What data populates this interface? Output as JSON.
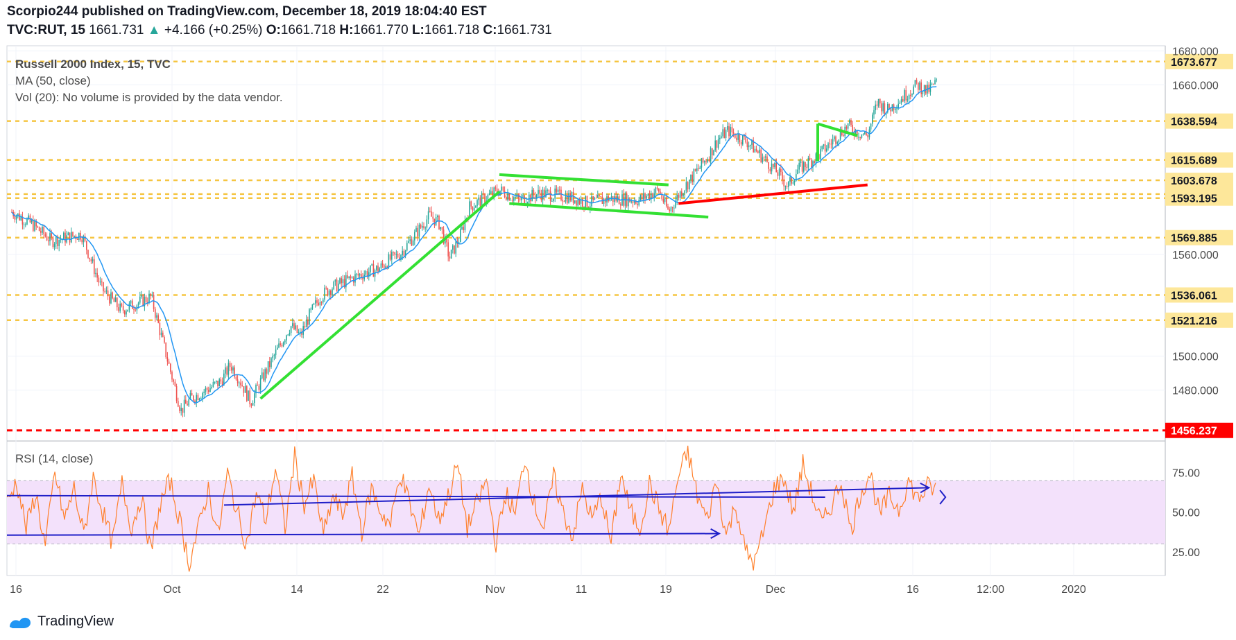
{
  "header": {
    "publisher_line": "Scorpio244 published on TradingView.com, December 18, 2019 18:04:40 EST",
    "symbol": "TVC:RUT, 15",
    "last": "1661.731",
    "change": "+4.166 (+0.25%)",
    "o_label": "O:",
    "o": "1661.718",
    "h_label": "H:",
    "h": "1661.770",
    "l_label": "L:",
    "l": "1661.718",
    "c_label": "C:",
    "c": "1661.731"
  },
  "legend": {
    "title": "Russell 2000 Index, 15, TVC",
    "ma": "MA (50, close)",
    "vol": "Vol (20): No volume is provided by the data vendor.",
    "rsi": "RSI (14, close)"
  },
  "footer": {
    "brand": "TradingView"
  },
  "colors": {
    "candle_up": "#26a69a",
    "candle_down": "#ef5350",
    "ma": "#2196f3",
    "level_line": "#f5c542",
    "level_label_bg": "#fde79a",
    "support_red": "#ff0000",
    "trend_green": "#33e033",
    "rsi_line": "#ff7f2a",
    "rsi_band": "#f3e1fb",
    "rsi_trend": "#1e1ec8"
  },
  "chart_data": [
    {
      "type": "candlestick",
      "title": "Russell 2000 Index, 15, TVC",
      "y_axis": {
        "ticks": [
          1480,
          1500,
          1560,
          1660,
          1680
        ],
        "tick_labels": [
          "1480.000",
          "1500.000",
          "1560.000",
          "1660.000",
          "1680.000"
        ],
        "range": [
          1450,
          1683
        ]
      },
      "x_axis": {
        "ticks": [
          "16",
          "Oct",
          "14",
          "22",
          "Nov",
          "11",
          "19",
          "Dec",
          "16",
          "12:00",
          "2020"
        ]
      },
      "horizontal_levels": [
        {
          "value": 1673.677,
          "label": "1673.677",
          "style": "dashed",
          "color": "#f5c542"
        },
        {
          "value": 1638.594,
          "label": "1638.594",
          "style": "dashed",
          "color": "#f5c542"
        },
        {
          "value": 1615.689,
          "label": "1615.689",
          "style": "dashed",
          "color": "#f5c542"
        },
        {
          "value": 1603.678,
          "label": "1603.678",
          "style": "dashed",
          "color": "#f5c542"
        },
        {
          "value": 1595.549,
          "label": "1595.549",
          "style": "dashed",
          "color": "#f5c542"
        },
        {
          "value": 1593.195,
          "label": "1593.195",
          "style": "dashed",
          "color": "#f5c542"
        },
        {
          "value": 1569.885,
          "label": "1569.885",
          "style": "dashed",
          "color": "#f5c542"
        },
        {
          "value": 1536.061,
          "label": "1536.061",
          "style": "dashed",
          "color": "#f5c542"
        },
        {
          "value": 1521.216,
          "label": "1521.216",
          "style": "dashed",
          "color": "#f5c542"
        },
        {
          "value": 1456.237,
          "label": "1456.237",
          "style": "dashed",
          "color": "#ff0000"
        }
      ],
      "price_path": [
        [
          "Sep 16",
          1585
        ],
        [
          "Sep 18",
          1578
        ],
        [
          "Sep 20",
          1568
        ],
        [
          "Sep 23",
          1572
        ],
        [
          "Sep 25",
          1540
        ],
        [
          "Sep 27",
          1527
        ],
        [
          "Sep 30",
          1535
        ],
        [
          "Oct 2",
          1490
        ],
        [
          "Oct 3",
          1468
        ],
        [
          "Oct 4",
          1475
        ],
        [
          "Oct 7",
          1485
        ],
        [
          "Oct 8",
          1495
        ],
        [
          "Oct 9",
          1485
        ],
        [
          "Oct 10",
          1473
        ],
        [
          "Oct 11",
          1485
        ],
        [
          "Oct 14",
          1518
        ],
        [
          "Oct 15",
          1512
        ],
        [
          "Oct 16",
          1525
        ],
        [
          "Oct 17",
          1535
        ],
        [
          "Oct 18",
          1540
        ],
        [
          "Oct 21",
          1548
        ],
        [
          "Oct 23",
          1552
        ],
        [
          "Oct 24",
          1557
        ],
        [
          "Oct 25",
          1560
        ],
        [
          "Oct 28",
          1583
        ],
        [
          "Oct 29",
          1578
        ],
        [
          "Oct 30",
          1558
        ],
        [
          "Oct 31",
          1570
        ],
        [
          "Nov 1",
          1588
        ],
        [
          "Nov 4",
          1598
        ],
        [
          "Nov 6",
          1592
        ],
        [
          "Nov 8",
          1596
        ],
        [
          "Nov 11",
          1594
        ],
        [
          "Nov 13",
          1590
        ],
        [
          "Nov 15",
          1593
        ],
        [
          "Nov 18",
          1592
        ],
        [
          "Nov 20",
          1598
        ],
        [
          "Nov 21",
          1585
        ],
        [
          "Nov 22",
          1595
        ],
        [
          "Nov 25",
          1618
        ],
        [
          "Nov 26",
          1628
        ],
        [
          "Nov 27",
          1633
        ],
        [
          "Nov 29",
          1626
        ],
        [
          "Dec 2",
          1608
        ],
        [
          "Dec 3",
          1600
        ],
        [
          "Dec 4",
          1610
        ],
        [
          "Dec 5",
          1614
        ],
        [
          "Dec 6",
          1618
        ],
        [
          "Dec 9",
          1636
        ],
        [
          "Dec 10",
          1632
        ],
        [
          "Dec 11",
          1630
        ],
        [
          "Dec 12",
          1650
        ],
        [
          "Dec 13",
          1645
        ],
        [
          "Dec 16",
          1660
        ],
        [
          "Dec 17",
          1656
        ],
        [
          "Dec 18",
          1661.731
        ]
      ],
      "trendlines": [
        {
          "color": "#33e033",
          "from": [
            "Oct 11",
            1475
          ],
          "to": [
            "Nov 4",
            1597
          ]
        },
        {
          "color": "#33e033",
          "from": [
            "Nov 4",
            1607
          ],
          "to": [
            "Nov 21",
            1601
          ]
        },
        {
          "color": "#33e033",
          "from": [
            "Nov 5",
            1590
          ],
          "to": [
            "Nov 25",
            1582
          ]
        },
        {
          "color": "#ff0000",
          "from": [
            "Nov 22",
            1590
          ],
          "to": [
            "Dec 11",
            1601
          ]
        },
        {
          "color": "#33e033",
          "from": [
            "Dec 6",
            1637
          ],
          "to": [
            "Dec 10",
            1630
          ]
        }
      ]
    },
    {
      "type": "line",
      "title": "RSI (14, close)",
      "y_axis": {
        "ticks": [
          25,
          50,
          75
        ],
        "tick_labels": [
          "25.00",
          "50.00",
          "75.00"
        ],
        "range": [
          10,
          95
        ],
        "band": [
          30,
          70
        ]
      },
      "rsi_values": [
        55,
        70,
        40,
        62,
        28,
        75,
        45,
        65,
        35,
        72,
        50,
        30,
        68,
        40,
        60,
        25,
        55,
        70,
        45,
        18,
        40,
        65,
        35,
        74,
        50,
        30,
        62,
        45,
        78,
        40,
        85,
        55,
        70,
        35,
        60,
        48,
        72,
        38,
        65,
        50,
        42,
        75,
        55,
        35,
        68,
        45,
        60,
        80,
        40,
        55,
        70,
        30,
        62,
        48,
        85,
        55,
        40,
        72,
        50,
        35,
        65,
        45,
        60,
        30,
        75,
        50,
        40,
        68,
        52,
        38,
        72,
        88,
        60,
        45,
        70,
        35,
        55,
        25,
        18,
        40,
        65,
        72,
        50,
        80,
        60,
        42,
        55,
        70,
        38,
        62,
        75,
        48,
        60,
        52,
        70,
        58,
        66,
        64
      ],
      "trendlines": [
        {
          "from": [
            0.0,
            60.5
          ],
          "to": [
            0.765,
            59.5
          ]
        },
        {
          "from": [
            0.203,
            54.5
          ],
          "to": [
            0.862,
            65.5
          ],
          "arrow": true
        },
        {
          "from": [
            0.0,
            35.5
          ],
          "to": [
            0.666,
            36.5
          ],
          "arrow": true
        }
      ]
    }
  ]
}
